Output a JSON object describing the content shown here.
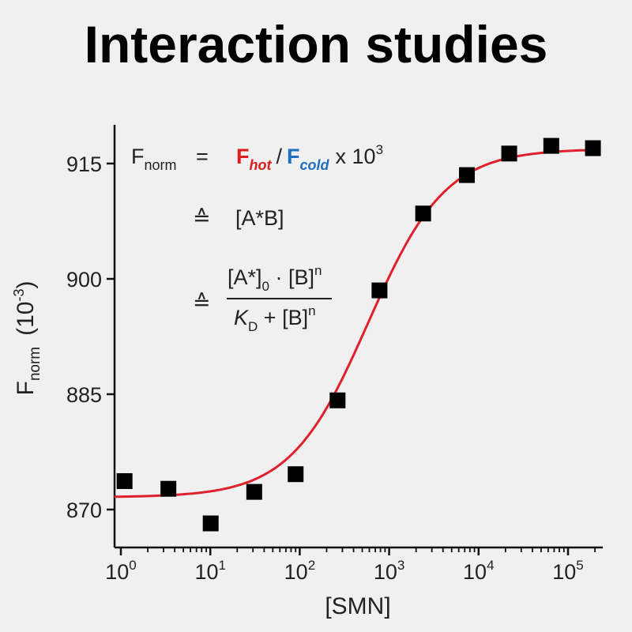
{
  "page": {
    "title": "Interaction studies"
  },
  "chart_data": {
    "type": "scatter",
    "title": "Interaction studies",
    "xlabel": "[SMN]",
    "ylabel_main": "F",
    "ylabel_sub": "norm",
    "ylabel_unit_base": "(10",
    "ylabel_unit_exp": "-3",
    "ylabel_unit_close": ")",
    "xscale": "log",
    "xlim": [
      0.8,
      200000
    ],
    "ylim": [
      865,
      920
    ],
    "x_ticks": [
      {
        "value": 1,
        "base": "10",
        "exp": "0"
      },
      {
        "value": 10,
        "base": "10",
        "exp": "1"
      },
      {
        "value": 100,
        "base": "10",
        "exp": "2"
      },
      {
        "value": 1000,
        "base": "10",
        "exp": "3"
      },
      {
        "value": 10000,
        "base": "10",
        "exp": "4"
      },
      {
        "value": 100000,
        "base": "10",
        "exp": "5"
      }
    ],
    "y_ticks": [
      {
        "value": 870,
        "label": "870"
      },
      {
        "value": 885,
        "label": "885"
      },
      {
        "value": 900,
        "label": "900"
      },
      {
        "value": 915,
        "label": "915"
      }
    ],
    "points": [
      {
        "x": 1.1,
        "y": 873.7
      },
      {
        "x": 3.4,
        "y": 872.7
      },
      {
        "x": 10.1,
        "y": 868.2
      },
      {
        "x": 31,
        "y": 872.3
      },
      {
        "x": 90,
        "y": 874.6
      },
      {
        "x": 265,
        "y": 884.2
      },
      {
        "x": 780,
        "y": 898.5
      },
      {
        "x": 2400,
        "y": 908.5
      },
      {
        "x": 7400,
        "y": 913.5
      },
      {
        "x": 22000,
        "y": 916.3
      },
      {
        "x": 65000,
        "y": 917.3
      },
      {
        "x": 190000,
        "y": 917.0
      }
    ],
    "fit_curve": {
      "color": "#e0202a",
      "bottom": 871.6,
      "top": 916.9,
      "ec50": 580,
      "hill": 1.0
    },
    "marker_color": "#000000",
    "equation": {
      "lhs_main": "F",
      "lhs_sub": "norm",
      "equals": "=",
      "f_hot": "F",
      "f_hot_sub": "hot",
      "f_hot_color": "#dd1c1c",
      "slash": "/",
      "f_cold": "F",
      "f_cold_sub": "cold",
      "f_cold_color": "#1f6fc0",
      "times": "x 10",
      "times_exp": "3",
      "corr_symbol": "≙",
      "complex": "[A*B]",
      "num_a": "[A*]",
      "num_a_sub": "0",
      "num_dot": " · [B]",
      "num_exp": "n",
      "den_k": "K",
      "den_k_sub": "D",
      "den_plus": " + [B]",
      "den_exp": "n"
    }
  }
}
